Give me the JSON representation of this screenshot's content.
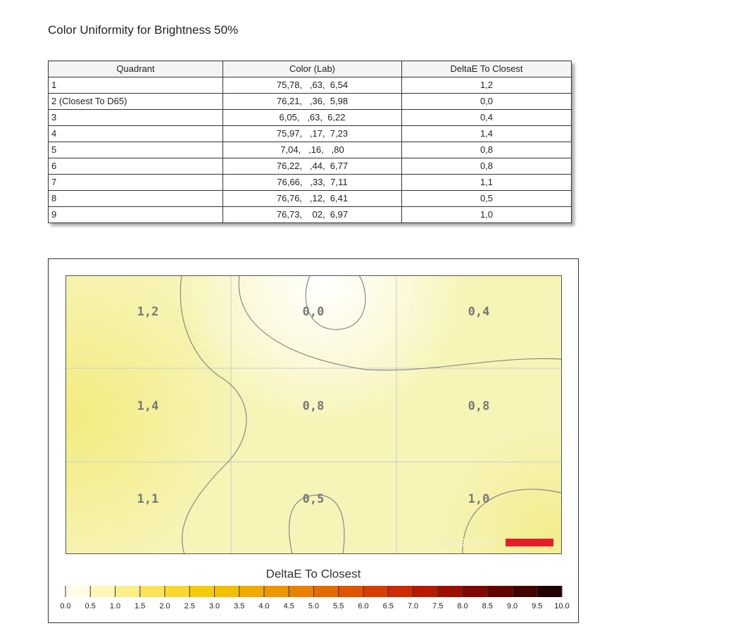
{
  "title": "Color Uniformity for Brightness 50%",
  "table": {
    "headers": [
      "Quadrant",
      "Color (Lab)",
      "DeltaE To Closest"
    ],
    "rows": [
      [
        "1",
        "75,78,   ,63,  6,54",
        "1,2"
      ],
      [
        "2 (Closest To D65)",
        "76,21,   ,36,  5,98",
        "0,0"
      ],
      [
        "3",
        "6,05,   ,63,  6,22",
        "0,4"
      ],
      [
        "4",
        "75,97,   ,17,  7,23",
        "1,4"
      ],
      [
        "5",
        "7,04,   ,16,   ,80",
        "0,8"
      ],
      [
        "6",
        "76,22,   ,44,  6,77",
        "0,8"
      ],
      [
        "7",
        "76,66,   ,33,  7,11",
        "1,1"
      ],
      [
        "8",
        "76,76,   ,12,  6,41",
        "0,5"
      ],
      [
        "9",
        "76,73,    02,  6,97",
        "1,0"
      ]
    ]
  },
  "heatmap": {
    "cells": [
      [
        "1,2",
        "0,0",
        "0,4"
      ],
      [
        "1,4",
        "0,8",
        "0,8"
      ],
      [
        "1,1",
        "0,5",
        "1,0"
      ]
    ],
    "brand": "datacolor",
    "legend_title": "DeltaE To Closest",
    "legend_ticks": [
      "0.0",
      "0.5",
      "1.0",
      "1.5",
      "2.0",
      "2.5",
      "3.0",
      "3.5",
      "4.0",
      "4.5",
      "5.0",
      "5.5",
      "6.0",
      "6.5",
      "7.0",
      "7.5",
      "8.0",
      "8.5",
      "9.0",
      "9.5",
      "10.0"
    ]
  }
}
